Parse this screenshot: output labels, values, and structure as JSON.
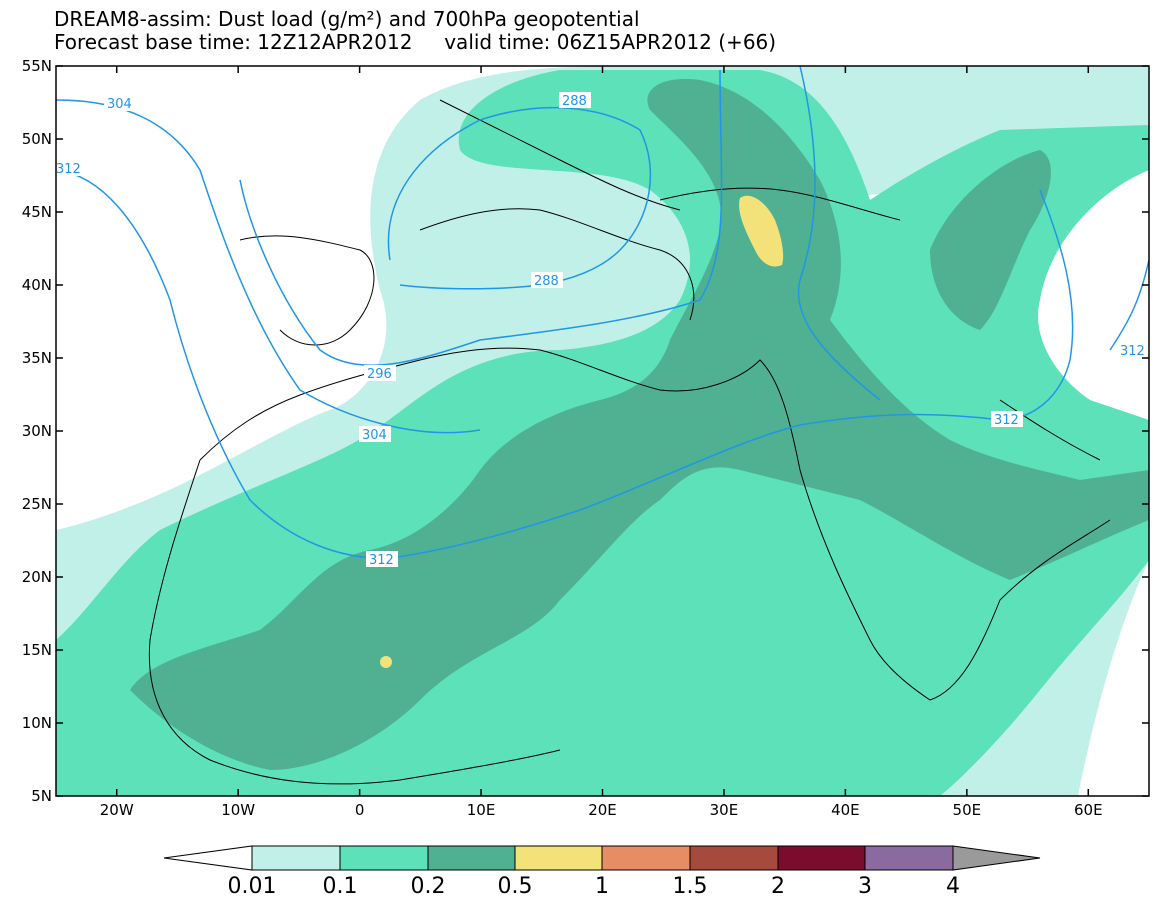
{
  "title": {
    "line1": "DREAM8-assim: Dust load (g/m²) and 700hPa geopotential",
    "line2": "Forecast base time: 12Z12APR2012     valid time: 06Z15APR2012 (+66)"
  },
  "map": {
    "lat_labels": [
      "55N",
      "50N",
      "45N",
      "40N",
      "35N",
      "30N",
      "25N",
      "20N",
      "15N",
      "10N",
      "5N"
    ],
    "lon_labels": [
      "20W",
      "10W",
      "0",
      "10E",
      "20E",
      "30E",
      "40E",
      "50E",
      "60E"
    ],
    "lon_range": [
      -25,
      65
    ],
    "lat_range": [
      5,
      55
    ],
    "background_color": "#ffffff",
    "land_outline_color": "#000000"
  },
  "colorbar": {
    "labels": [
      "0.01",
      "0.1",
      "0.2",
      "0.5",
      "1",
      "1.5",
      "2",
      "3",
      "4"
    ],
    "colors": [
      "#ffffff",
      "#c0f0e8",
      "#5ce1b8",
      "#4fb191",
      "#f3e27a",
      "#e68d63",
      "#a54a3c",
      "#7a0d2e",
      "#8b6aa0",
      "#9a9a9a"
    ]
  },
  "contours": {
    "color": "#2196e8",
    "labels": [
      "304",
      "312",
      "288",
      "288",
      "296",
      "304",
      "312",
      "312",
      "312"
    ]
  }
}
